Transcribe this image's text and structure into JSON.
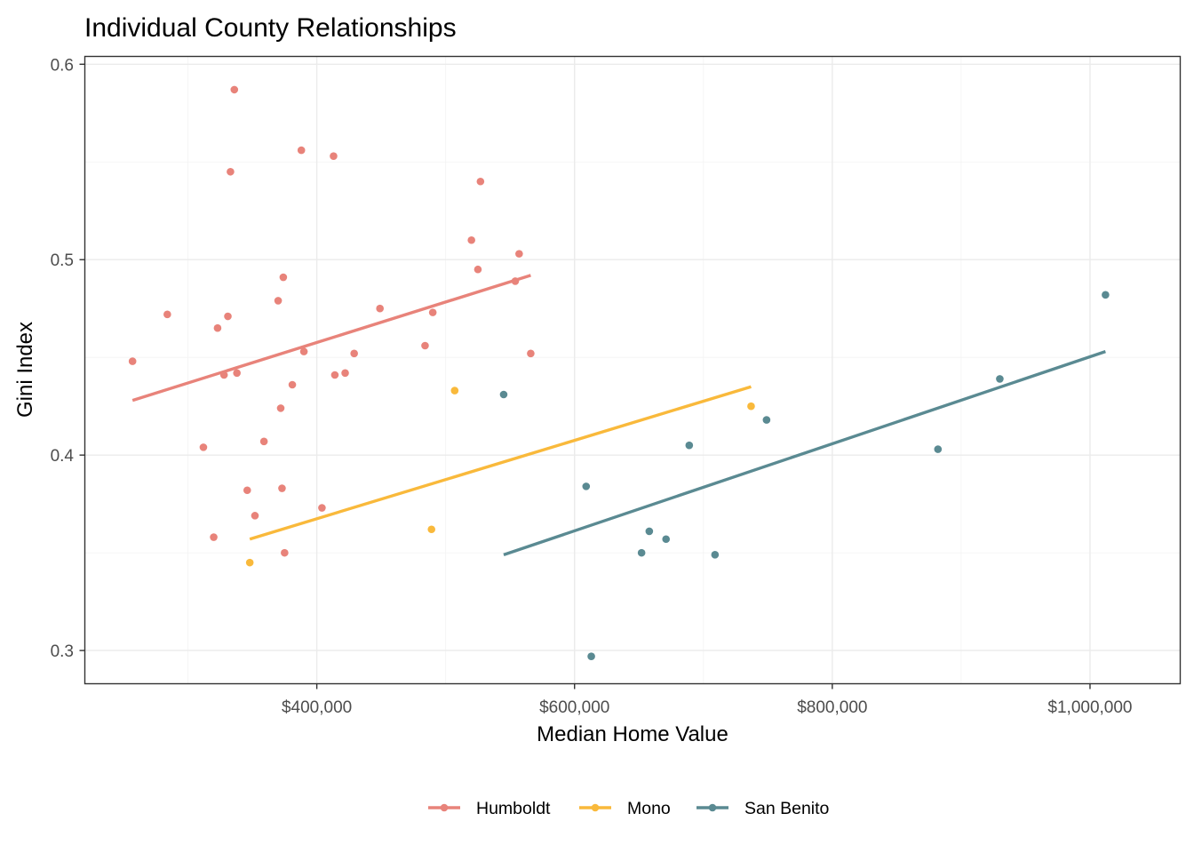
{
  "chart_data": {
    "type": "scatter",
    "title": "Individual County Relationships",
    "xlabel": "Median Home Value",
    "ylabel": "Gini Index",
    "xlim": [
      220000,
      1070000
    ],
    "ylim": [
      0.283,
      0.604
    ],
    "x_ticks": [
      400000,
      600000,
      800000,
      1000000
    ],
    "x_tick_labels": [
      "$400,000",
      "$600,000",
      "$800,000",
      "$1,000,000"
    ],
    "y_ticks": [
      0.3,
      0.4,
      0.5,
      0.6
    ],
    "y_tick_labels": [
      "0.3",
      "0.4",
      "0.5",
      "0.6"
    ],
    "grid": true,
    "legend_position": "bottom",
    "series": [
      {
        "name": "Humboldt",
        "color": "#e8837a",
        "points": [
          [
            257000,
            0.448
          ],
          [
            284000,
            0.472
          ],
          [
            312000,
            0.404
          ],
          [
            320000,
            0.358
          ],
          [
            323000,
            0.465
          ],
          [
            328000,
            0.441
          ],
          [
            331000,
            0.471
          ],
          [
            333000,
            0.545
          ],
          [
            336000,
            0.587
          ],
          [
            338000,
            0.442
          ],
          [
            346000,
            0.382
          ],
          [
            352000,
            0.369
          ],
          [
            359000,
            0.407
          ],
          [
            370000,
            0.479
          ],
          [
            372000,
            0.424
          ],
          [
            373000,
            0.383
          ],
          [
            374000,
            0.491
          ],
          [
            375000,
            0.35
          ],
          [
            381000,
            0.436
          ],
          [
            388000,
            0.556
          ],
          [
            390000,
            0.453
          ],
          [
            404000,
            0.373
          ],
          [
            413000,
            0.553
          ],
          [
            414000,
            0.441
          ],
          [
            422000,
            0.442
          ],
          [
            429000,
            0.452
          ],
          [
            449000,
            0.475
          ],
          [
            484000,
            0.456
          ],
          [
            490000,
            0.473
          ],
          [
            520000,
            0.51
          ],
          [
            525000,
            0.495
          ],
          [
            527000,
            0.54
          ],
          [
            554000,
            0.489
          ],
          [
            557000,
            0.503
          ],
          [
            566000,
            0.452
          ]
        ],
        "fit": [
          [
            257000,
            0.428
          ],
          [
            566000,
            0.492
          ]
        ]
      },
      {
        "name": "Mono",
        "color": "#f9b93b",
        "points": [
          [
            348000,
            0.345
          ],
          [
            489000,
            0.362
          ],
          [
            507000,
            0.433
          ],
          [
            737000,
            0.425
          ]
        ],
        "fit": [
          [
            348000,
            0.357
          ],
          [
            737000,
            0.435
          ]
        ]
      },
      {
        "name": "San Benito",
        "color": "#5a8a92",
        "points": [
          [
            545000,
            0.431
          ],
          [
            609000,
            0.384
          ],
          [
            613000,
            0.297
          ],
          [
            652000,
            0.35
          ],
          [
            658000,
            0.361
          ],
          [
            671000,
            0.357
          ],
          [
            689000,
            0.405
          ],
          [
            709000,
            0.349
          ],
          [
            749000,
            0.418
          ],
          [
            882000,
            0.403
          ],
          [
            930000,
            0.439
          ],
          [
            1012000,
            0.482
          ]
        ],
        "fit": [
          [
            545000,
            0.349
          ],
          [
            1012000,
            0.453
          ]
        ]
      }
    ]
  }
}
